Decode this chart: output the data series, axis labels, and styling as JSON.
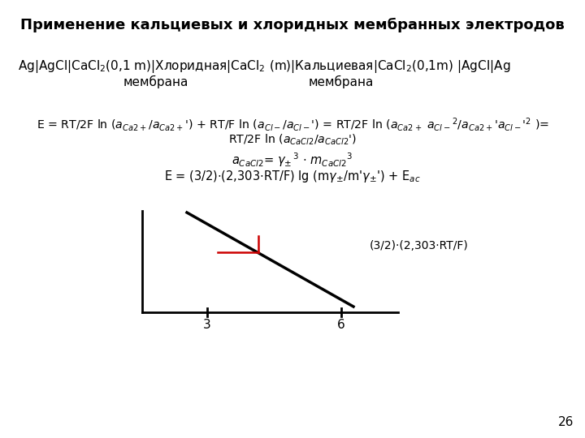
{
  "title": "Применение кальциевых и хлоридных мембранных электродов",
  "title_fontsize": 13,
  "bg_color": "#ffffff",
  "slide_number": "26",
  "text_color": "#000000",
  "red_color": "#cc0000",
  "graph_annotation": "(3/2)·(2,303·RT/F)",
  "tick_label_3": "3",
  "tick_label_6": "6"
}
